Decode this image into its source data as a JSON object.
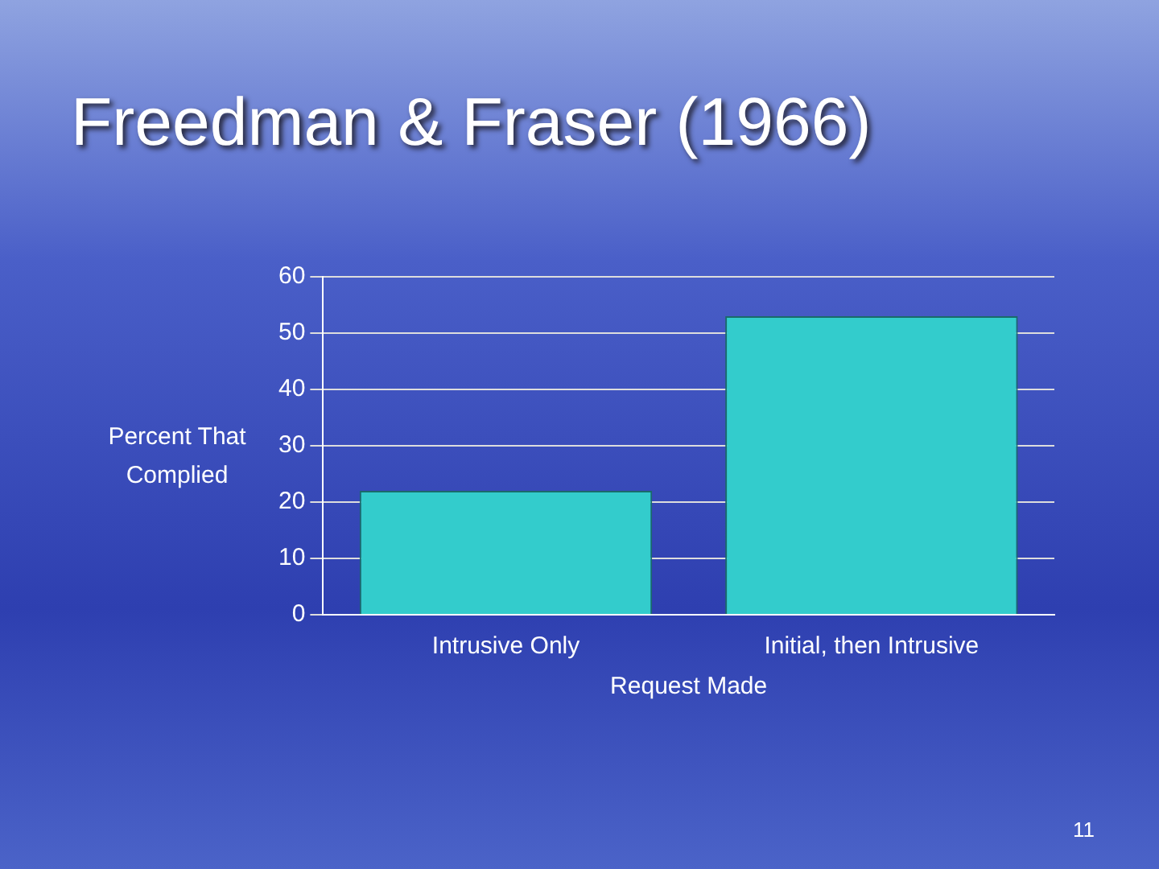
{
  "chart_data": {
    "type": "bar",
    "title": "Freedman & Fraser (1966)",
    "xlabel": "Request Made",
    "ylabel": "Percent That Complied",
    "categories": [
      "Intrusive Only",
      "Initial, then Intrusive"
    ],
    "values": [
      22,
      53
    ],
    "color": "#33cccc",
    "ylim": [
      0,
      60
    ],
    "yticks": [
      0,
      10,
      20,
      30,
      40,
      50,
      60
    ],
    "grid": "y",
    "legend": false,
    "annotations": [
      "11"
    ]
  }
}
